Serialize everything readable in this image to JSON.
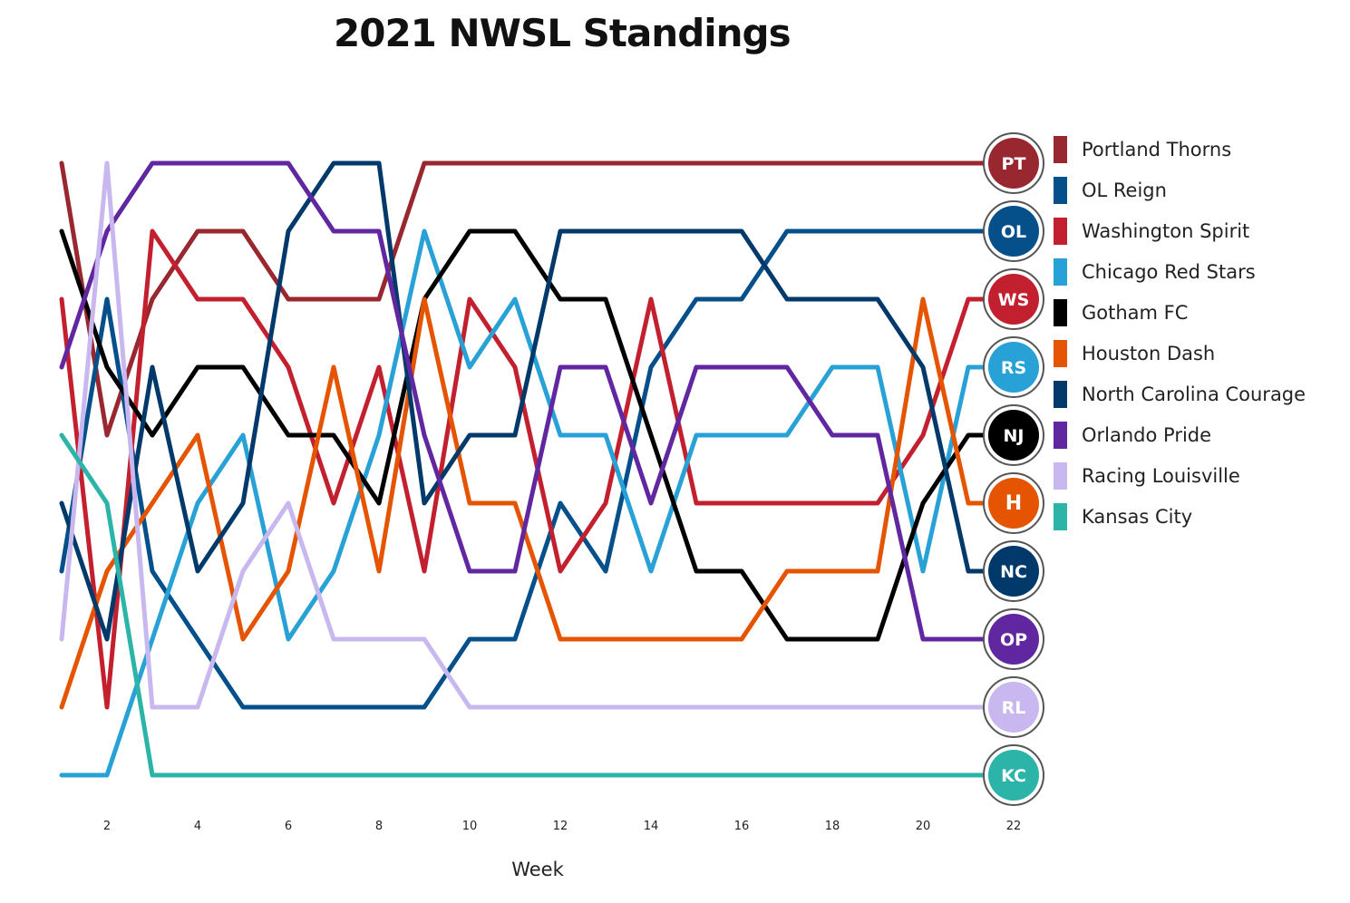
{
  "chart_data": {
    "type": "line",
    "title": "2021 NWSL Standings",
    "xlabel": "Week",
    "ylabel": "",
    "x": [
      1,
      2,
      3,
      4,
      5,
      6,
      7,
      8,
      9,
      10,
      11,
      12,
      13,
      14,
      15,
      16,
      17,
      18,
      19,
      20,
      21,
      22
    ],
    "x_ticks": [
      2,
      4,
      6,
      8,
      10,
      12,
      14,
      16,
      18,
      20,
      22
    ],
    "xlim": [
      1,
      22
    ],
    "ylim": [
      1,
      10
    ],
    "y_inverted": true,
    "grid": false,
    "legend_position": "right",
    "series": [
      {
        "name": "Portland Thorns",
        "color": "#98272f",
        "logo": "PT",
        "values": [
          1,
          5,
          3,
          2,
          2,
          3,
          3,
          3,
          1,
          1,
          1,
          1,
          1,
          1,
          1,
          1,
          1,
          1,
          1,
          1,
          1,
          1
        ]
      },
      {
        "name": "OL Reign",
        "color": "#05508b",
        "logo": "OL",
        "values": [
          7,
          3,
          7,
          8,
          9,
          9,
          9,
          9,
          9,
          8,
          8,
          6,
          7,
          4,
          3,
          3,
          2,
          2,
          2,
          2,
          2,
          2
        ]
      },
      {
        "name": "Washington Spirit",
        "color": "#c3202f",
        "logo": "WS",
        "values": [
          3,
          9,
          2,
          3,
          3,
          4,
          6,
          4,
          7,
          3,
          4,
          7,
          6,
          3,
          6,
          6,
          6,
          6,
          6,
          5,
          3,
          3
        ]
      },
      {
        "name": "Chicago Red Stars",
        "color": "#27a1d6",
        "logo": "RS",
        "values": [
          10,
          10,
          8,
          6,
          5,
          8,
          7,
          5,
          2,
          4,
          3,
          5,
          5,
          7,
          5,
          5,
          5,
          4,
          4,
          7,
          4,
          4
        ]
      },
      {
        "name": "Gotham FC",
        "color": "#000000",
        "logo": "NJ",
        "values": [
          2,
          4,
          5,
          4,
          4,
          5,
          5,
          6,
          3,
          2,
          2,
          3,
          3,
          5,
          7,
          7,
          8,
          8,
          8,
          6,
          5,
          5
        ]
      },
      {
        "name": "Houston Dash",
        "color": "#e55400",
        "logo": "H",
        "values": [
          9,
          7,
          6,
          5,
          8,
          7,
          4,
          7,
          3,
          6,
          6,
          8,
          8,
          8,
          8,
          8,
          7,
          7,
          7,
          3,
          6,
          6
        ]
      },
      {
        "name": "North Carolina Courage",
        "color": "#00396a",
        "logo": "NC",
        "values": [
          6,
          8,
          4,
          7,
          6,
          2,
          1,
          1,
          6,
          5,
          5,
          2,
          2,
          2,
          2,
          2,
          3,
          3,
          3,
          4,
          7,
          7
        ]
      },
      {
        "name": "Orlando Pride",
        "color": "#6127a1",
        "logo": "OP",
        "values": [
          4,
          2,
          1,
          1,
          1,
          1,
          2,
          2,
          5,
          7,
          7,
          4,
          4,
          6,
          4,
          4,
          4,
          5,
          5,
          8,
          8,
          8
        ]
      },
      {
        "name": "Racing Louisville",
        "color": "#c8b8ef",
        "logo": "RL",
        "values": [
          8,
          1,
          9,
          9,
          7,
          6,
          8,
          8,
          8,
          9,
          9,
          9,
          9,
          9,
          9,
          9,
          9,
          9,
          9,
          9,
          9,
          9
        ]
      },
      {
        "name": "Kansas City",
        "color": "#2db4a8",
        "logo": "KC",
        "values": [
          5,
          6,
          10,
          10,
          10,
          10,
          10,
          10,
          10,
          10,
          10,
          10,
          10,
          10,
          10,
          10,
          10,
          10,
          10,
          10,
          10,
          10
        ]
      }
    ]
  }
}
